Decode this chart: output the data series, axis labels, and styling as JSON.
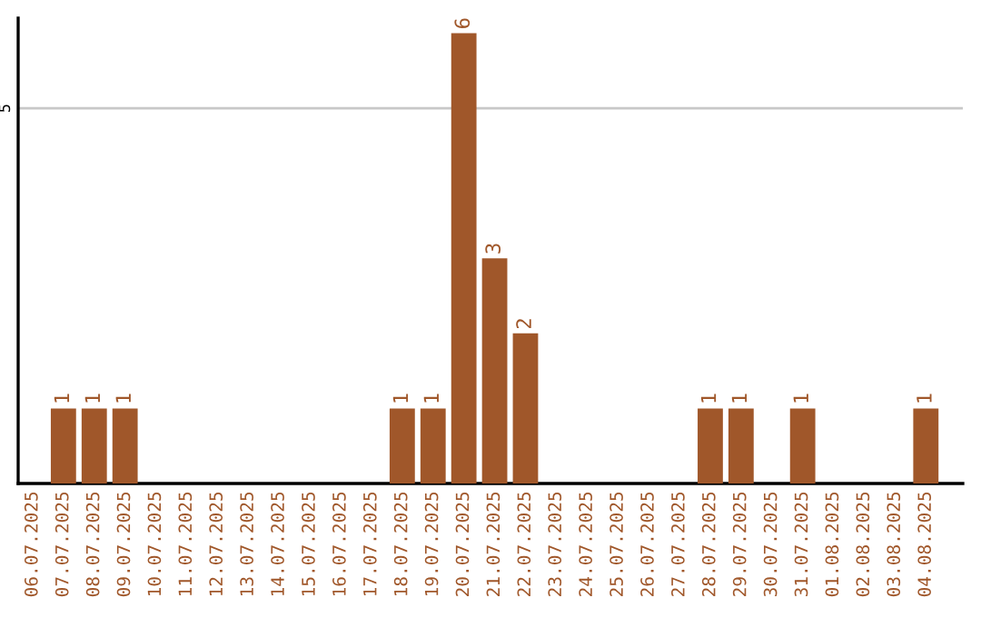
{
  "chart_data": {
    "type": "bar",
    "categories": [
      "06.07.2025",
      "07.07.2025",
      "08.07.2025",
      "09.07.2025",
      "10.07.2025",
      "11.07.2025",
      "12.07.2025",
      "13.07.2025",
      "14.07.2025",
      "15.07.2025",
      "16.07.2025",
      "17.07.2025",
      "18.07.2025",
      "19.07.2025",
      "20.07.2025",
      "21.07.2025",
      "22.07.2025",
      "23.07.2025",
      "24.07.2025",
      "25.07.2025",
      "26.07.2025",
      "27.07.2025",
      "28.07.2025",
      "29.07.2025",
      "30.07.2025",
      "31.07.2025",
      "01.08.2025",
      "02.08.2025",
      "03.08.2025",
      "04.08.2025"
    ],
    "values": [
      0,
      1,
      1,
      1,
      0,
      0,
      0,
      0,
      0,
      0,
      0,
      0,
      1,
      1,
      6,
      3,
      2,
      0,
      0,
      0,
      0,
      0,
      1,
      1,
      0,
      1,
      0,
      0,
      0,
      1
    ],
    "value_labels": [
      null,
      "1",
      "1",
      "1",
      null,
      null,
      null,
      null,
      null,
      null,
      null,
      null,
      "1",
      "1",
      "6",
      "3",
      "2",
      null,
      null,
      null,
      null,
      null,
      "1",
      "1",
      null,
      "1",
      null,
      null,
      null,
      "1"
    ],
    "color": "#a0572a",
    "ylim": [
      0,
      6.2
    ],
    "yticks": [
      5
    ],
    "grid": "y"
  }
}
